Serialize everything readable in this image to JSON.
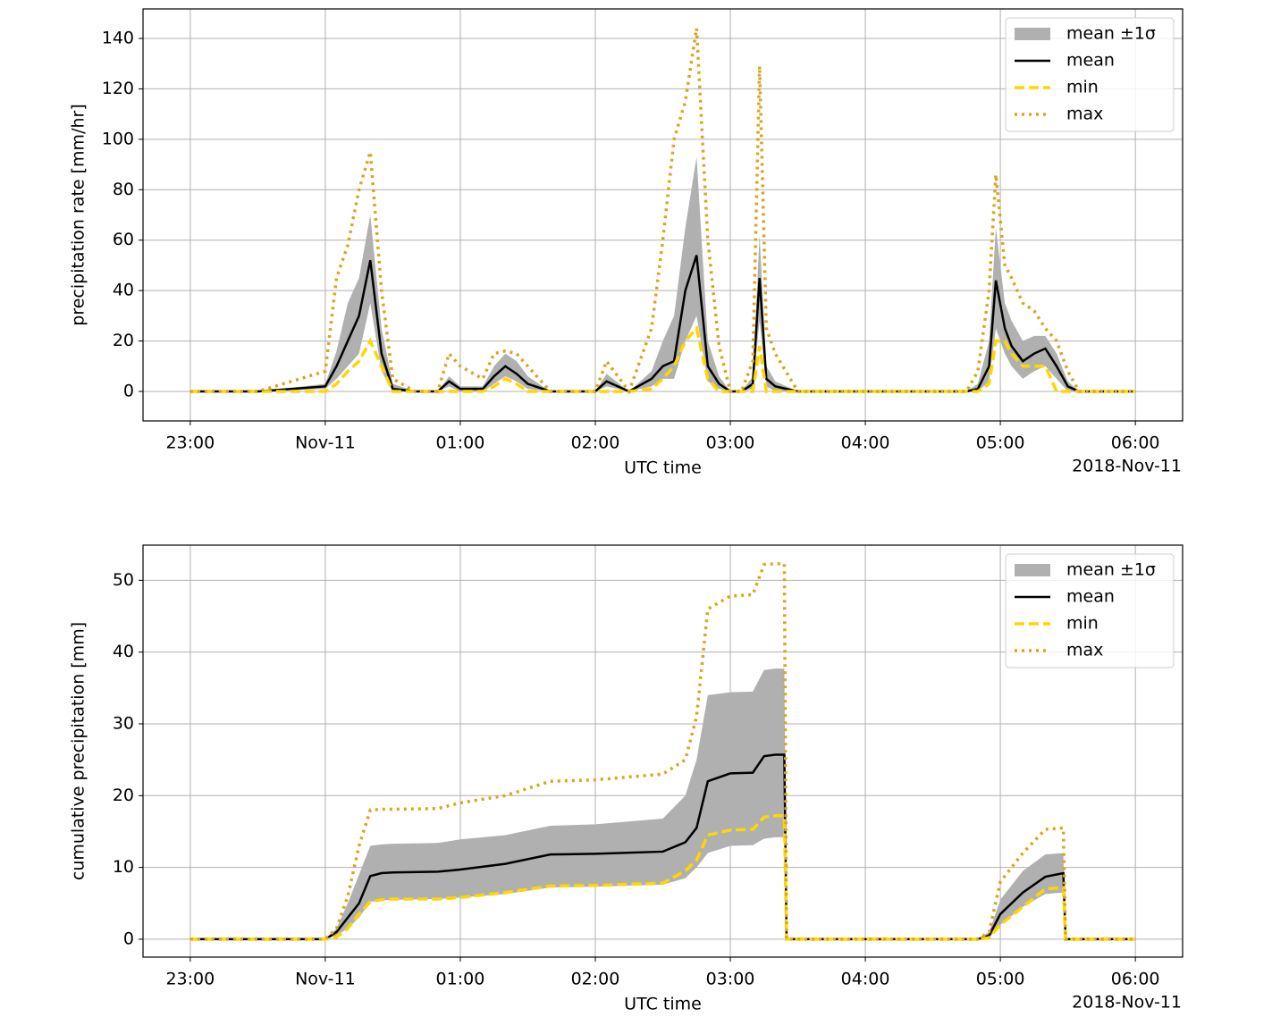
{
  "chart_data": [
    {
      "type": "line",
      "ylabel": "precipitation rate  [mm/hr]",
      "xlabel": "UTC time",
      "x_offset_label": "2018-Nov-11",
      "xlim": [
        "22:39",
        "06:21"
      ],
      "xticks": [
        "23:00",
        {
          "value": "00:00",
          "label": "Nov-11"
        },
        "01:00",
        "02:00",
        "03:00",
        "04:00",
        "05:00",
        "06:00"
      ],
      "ylim": [
        -11.7,
        151.7
      ],
      "yticks": [
        0,
        20,
        40,
        60,
        80,
        100,
        120,
        140
      ],
      "grid": true,
      "legend": "upper right",
      "x": [
        "23:00",
        "23:30",
        "00:00",
        "00:05",
        "00:10",
        "00:15",
        "00:20",
        "00:25",
        "00:30",
        "00:40",
        "00:50",
        "00:55",
        "01:00",
        "01:10",
        "01:15",
        "01:20",
        "01:25",
        "01:30",
        "01:40",
        "02:00",
        "02:05",
        "02:15",
        "02:25",
        "02:30",
        "02:35",
        "02:40",
        "02:45",
        "02:50",
        "02:55",
        "03:00",
        "03:05",
        "03:10",
        "03:13",
        "03:16",
        "03:20",
        "03:30",
        "04:00",
        "04:45",
        "04:50",
        "04:55",
        "04:58",
        "05:02",
        "05:05",
        "05:10",
        "05:15",
        "05:20",
        "05:25",
        "05:30",
        "05:35",
        "06:00"
      ],
      "series": [
        {
          "name": "mean ±1σ",
          "color": "#b0b0b0",
          "upper": [
            0,
            0,
            3,
            16,
            35,
            45,
            70,
            25,
            3,
            0,
            0,
            6,
            2,
            2,
            10,
            15,
            12,
            6,
            0,
            0,
            7,
            0,
            8,
            20,
            30,
            65,
            93,
            20,
            6,
            0,
            0,
            6,
            62,
            10,
            4,
            0,
            0,
            0,
            3,
            20,
            65,
            35,
            28,
            20,
            22,
            22,
            15,
            4,
            0,
            0
          ],
          "lower": [
            0,
            0,
            1,
            5,
            10,
            15,
            35,
            8,
            0,
            0,
            0,
            2,
            0,
            0,
            3,
            6,
            4,
            1,
            0,
            0,
            2,
            0,
            2,
            5,
            5,
            20,
            30,
            4,
            1,
            0,
            0,
            1,
            28,
            2,
            0,
            0,
            0,
            0,
            0,
            4,
            25,
            15,
            10,
            5,
            8,
            10,
            5,
            0,
            0,
            0
          ]
        },
        {
          "name": "mean",
          "color": "#000000",
          "dash": "solid",
          "values": [
            0,
            0,
            2,
            10,
            20,
            30,
            52,
            15,
            1,
            0,
            0,
            4,
            1,
            1,
            6,
            10,
            7,
            3,
            0,
            0,
            4,
            0,
            5,
            10,
            12,
            40,
            54,
            10,
            3,
            0,
            0,
            3,
            45,
            5,
            2,
            0,
            0,
            0,
            1,
            10,
            44,
            25,
            18,
            12,
            15,
            17,
            10,
            2,
            0,
            0
          ]
        },
        {
          "name": "min",
          "color": "#ffd700",
          "dash": "dashed",
          "values": [
            0,
            0,
            0,
            3,
            8,
            12,
            20,
            10,
            0,
            0,
            0,
            0,
            0,
            0,
            2,
            5,
            3,
            0,
            0,
            0,
            0,
            0,
            1,
            5,
            10,
            20,
            25,
            5,
            0,
            0,
            0,
            0,
            18,
            0,
            0,
            0,
            0,
            0,
            0,
            3,
            20,
            20,
            15,
            10,
            10,
            10,
            0,
            0,
            0,
            0
          ]
        },
        {
          "name": "max",
          "color": "#daa520",
          "dash": "dotted",
          "values": [
            0,
            0,
            8,
            45,
            58,
            80,
            95,
            40,
            5,
            0,
            0,
            15,
            10,
            5,
            15,
            16,
            15,
            10,
            0,
            0,
            12,
            0,
            25,
            60,
            100,
            115,
            144,
            60,
            18,
            0,
            0,
            12,
            129,
            25,
            15,
            0,
            0,
            0,
            8,
            40,
            86,
            50,
            45,
            35,
            32,
            25,
            20,
            8,
            0,
            0
          ]
        }
      ]
    },
    {
      "type": "line",
      "ylabel": "cumulative precipitation  [mm]",
      "xlabel": "UTC time",
      "x_offset_label": "2018-Nov-11",
      "xlim": [
        "22:39",
        "06:21"
      ],
      "xticks": [
        "23:00",
        {
          "value": "00:00",
          "label": "Nov-11"
        },
        "01:00",
        "02:00",
        "03:00",
        "04:00",
        "05:00",
        "06:00"
      ],
      "ylim": [
        -2.5,
        54.9
      ],
      "yticks": [
        0,
        10,
        20,
        30,
        40,
        50
      ],
      "grid": true,
      "legend": "upper right",
      "x": [
        "23:00",
        "00:00",
        "00:05",
        "00:10",
        "00:15",
        "00:20",
        "00:25",
        "00:30",
        "00:50",
        "01:00",
        "01:20",
        "01:40",
        "02:00",
        "02:30",
        "02:40",
        "02:45",
        "02:50",
        "03:00",
        "03:10",
        "03:15",
        "03:20",
        "03:24",
        "03:25",
        "04:00",
        "04:50",
        "04:55",
        "05:00",
        "05:10",
        "05:20",
        "05:28",
        "05:29",
        "06:00"
      ],
      "series": [
        {
          "name": "mean ±1σ",
          "color": "#b0b0b0",
          "upper": [
            0,
            0,
            1.5,
            5,
            9,
            13,
            13.2,
            13.3,
            13.4,
            13.9,
            14.5,
            15.8,
            16,
            16.8,
            20,
            25,
            34,
            34.4,
            34.5,
            37.5,
            37.7,
            37.7,
            0,
            0,
            0,
            1,
            5.5,
            9.5,
            11.8,
            12,
            0,
            0
          ],
          "lower": [
            0,
            0,
            0.5,
            1.5,
            3,
            5.2,
            5.4,
            5.5,
            5.6,
            5.8,
            6.3,
            7.2,
            7.3,
            7.6,
            8.5,
            10,
            12,
            13,
            13.1,
            14,
            14.2,
            14.2,
            0,
            0,
            0,
            0.2,
            2,
            4.5,
            6.3,
            6.5,
            0,
            0
          ]
        },
        {
          "name": "mean",
          "color": "#000000",
          "dash": "solid",
          "values": [
            0,
            0,
            1,
            3,
            5,
            8.8,
            9.2,
            9.3,
            9.4,
            9.7,
            10.5,
            11.8,
            11.9,
            12.2,
            13.5,
            15.5,
            22,
            23.1,
            23.2,
            25.5,
            25.7,
            25.7,
            0,
            0,
            0,
            0.5,
            3.5,
            6.5,
            8.7,
            9.2,
            0,
            0
          ]
        },
        {
          "name": "min",
          "color": "#ffd700",
          "dash": "dashed",
          "values": [
            0,
            0,
            0.3,
            1.5,
            3.5,
            5.2,
            5.5,
            5.6,
            5.6,
            5.8,
            6.5,
            7.4,
            7.5,
            7.8,
            9.5,
            11,
            14.5,
            15.2,
            15.3,
            17,
            17.2,
            17.2,
            0,
            0,
            0,
            0.2,
            2,
            4.5,
            7,
            7.2,
            0,
            0
          ]
        },
        {
          "name": "max",
          "color": "#daa520",
          "dash": "dotted",
          "values": [
            0,
            0,
            1.5,
            6,
            13,
            18,
            18.1,
            18.1,
            18.2,
            19,
            20,
            22,
            22.2,
            23,
            25,
            31,
            46,
            47.8,
            48,
            52.2,
            52.3,
            52.3,
            0,
            0,
            0,
            1,
            8,
            12,
            15.3,
            15.5,
            0,
            0
          ]
        }
      ]
    }
  ]
}
